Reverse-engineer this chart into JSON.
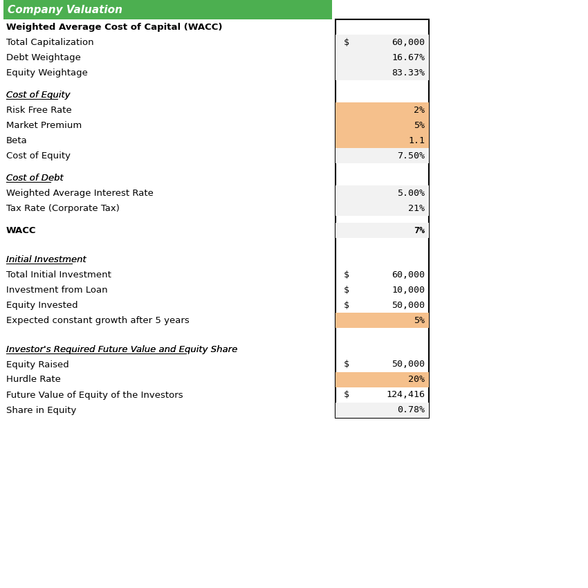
{
  "title": "Company Valuation",
  "title_bg": "#4CAF50",
  "title_color": "#ffffff",
  "bg_color": "#ffffff",
  "light_gray": "#f2f2f2",
  "orange": "#f5c08c",
  "border_color": "#000000",
  "rows": [
    {
      "label": "Weighted Average Cost of Capital (WACC)",
      "col1": "",
      "col2": "",
      "style": "section_header",
      "row_bg": "white"
    },
    {
      "label": "Total Capitalization",
      "col1": "$",
      "col2": "60,000",
      "style": "normal",
      "row_bg": "light_gray"
    },
    {
      "label": "Debt Weightage",
      "col1": "",
      "col2": "16.67%",
      "style": "normal",
      "row_bg": "light_gray"
    },
    {
      "label": "Equity Weightage",
      "col1": "",
      "col2": "83.33%",
      "style": "normal",
      "row_bg": "light_gray"
    },
    {
      "label": "",
      "col1": "",
      "col2": "",
      "style": "spacer",
      "row_bg": "white"
    },
    {
      "label": "Cost of Equity",
      "col1": "",
      "col2": "",
      "style": "italic_underline",
      "row_bg": "white"
    },
    {
      "label": "Risk Free Rate",
      "col1": "",
      "col2": "2%",
      "style": "normal",
      "row_bg": "orange"
    },
    {
      "label": "Market Premium",
      "col1": "",
      "col2": "5%",
      "style": "normal",
      "row_bg": "orange"
    },
    {
      "label": "Beta",
      "col1": "",
      "col2": "1.1",
      "style": "normal",
      "row_bg": "orange"
    },
    {
      "label": "Cost of Equity",
      "col1": "",
      "col2": "7.50%",
      "style": "normal",
      "row_bg": "light_gray"
    },
    {
      "label": "",
      "col1": "",
      "col2": "",
      "style": "spacer",
      "row_bg": "white"
    },
    {
      "label": "Cost of Debt",
      "col1": "",
      "col2": "",
      "style": "italic_underline",
      "row_bg": "white"
    },
    {
      "label": "Weighted Average Interest Rate",
      "col1": "",
      "col2": "5.00%",
      "style": "normal",
      "row_bg": "light_gray"
    },
    {
      "label": "Tax Rate (Corporate Tax)",
      "col1": "",
      "col2": "21%",
      "style": "normal",
      "row_bg": "light_gray"
    },
    {
      "label": "",
      "col1": "",
      "col2": "",
      "style": "spacer",
      "row_bg": "white"
    },
    {
      "label": "WACC",
      "col1": "",
      "col2": "7%",
      "style": "bold",
      "row_bg": "light_gray"
    },
    {
      "label": "",
      "col1": "",
      "col2": "",
      "style": "spacer",
      "row_bg": "white"
    },
    {
      "label": "",
      "col1": "",
      "col2": "",
      "style": "spacer",
      "row_bg": "white"
    },
    {
      "label": "Initial Investment",
      "col1": "",
      "col2": "",
      "style": "italic_underline",
      "row_bg": "white"
    },
    {
      "label": "Total Initial Investment",
      "col1": "$",
      "col2": "60,000",
      "style": "normal",
      "row_bg": "white"
    },
    {
      "label": "Investment from Loan",
      "col1": "$",
      "col2": "10,000",
      "style": "normal",
      "row_bg": "white"
    },
    {
      "label": "Equity Invested",
      "col1": "$",
      "col2": "50,000",
      "style": "normal",
      "row_bg": "white"
    },
    {
      "label": "Expected constant growth after 5 years",
      "col1": "",
      "col2": "5%",
      "style": "normal",
      "row_bg": "orange"
    },
    {
      "label": "",
      "col1": "",
      "col2": "",
      "style": "spacer",
      "row_bg": "white"
    },
    {
      "label": "",
      "col1": "",
      "col2": "",
      "style": "spacer",
      "row_bg": "white"
    },
    {
      "label": "Investor's Required Future Value and Equity Share",
      "col1": "",
      "col2": "",
      "style": "italic_underline",
      "row_bg": "white"
    },
    {
      "label": "Equity Raised",
      "col1": "$",
      "col2": "50,000",
      "style": "normal",
      "row_bg": "white"
    },
    {
      "label": "Hurdle Rate",
      "col1": "",
      "col2": "20%",
      "style": "normal",
      "row_bg": "orange"
    },
    {
      "label": "Future Value of Equity of the Investors",
      "col1": "$",
      "col2": "124,416",
      "style": "normal",
      "row_bg": "white"
    },
    {
      "label": "Share in Equity",
      "col1": "",
      "col2": "0.78%",
      "style": "normal",
      "row_bg": "light_gray"
    }
  ]
}
